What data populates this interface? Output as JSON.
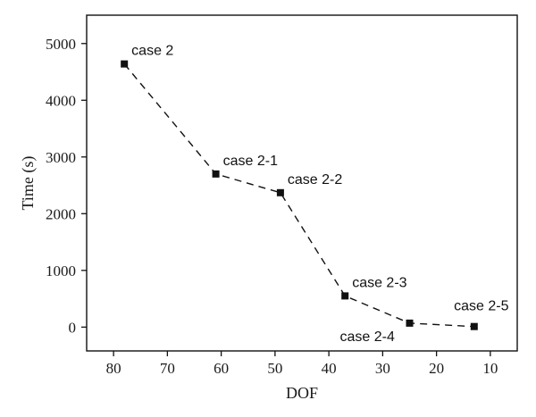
{
  "chart_data": {
    "type": "line",
    "xlabel": "DOF",
    "ylabel": "Time (s)",
    "xlim": [
      85,
      5
    ],
    "ylim": [
      -420,
      5500
    ],
    "x_reversed": true,
    "xticks": [
      80,
      70,
      60,
      50,
      40,
      30,
      20,
      10
    ],
    "yticks": [
      0,
      1000,
      2000,
      3000,
      4000,
      5000
    ],
    "grid": false,
    "line_style": "dashed",
    "marker": "square",
    "line_color": "#111111",
    "series": [
      {
        "points": [
          {
            "x": 78,
            "y": 4640,
            "label": "case 2"
          },
          {
            "x": 61,
            "y": 2700,
            "label": "case 2-1"
          },
          {
            "x": 49,
            "y": 2370,
            "label": "case 2-2"
          },
          {
            "x": 37,
            "y": 550,
            "label": "case 2-3"
          },
          {
            "x": 25,
            "y": 70,
            "label": "case 2-4"
          },
          {
            "x": 13,
            "y": 10,
            "label": "case 2-5"
          }
        ]
      }
    ]
  }
}
